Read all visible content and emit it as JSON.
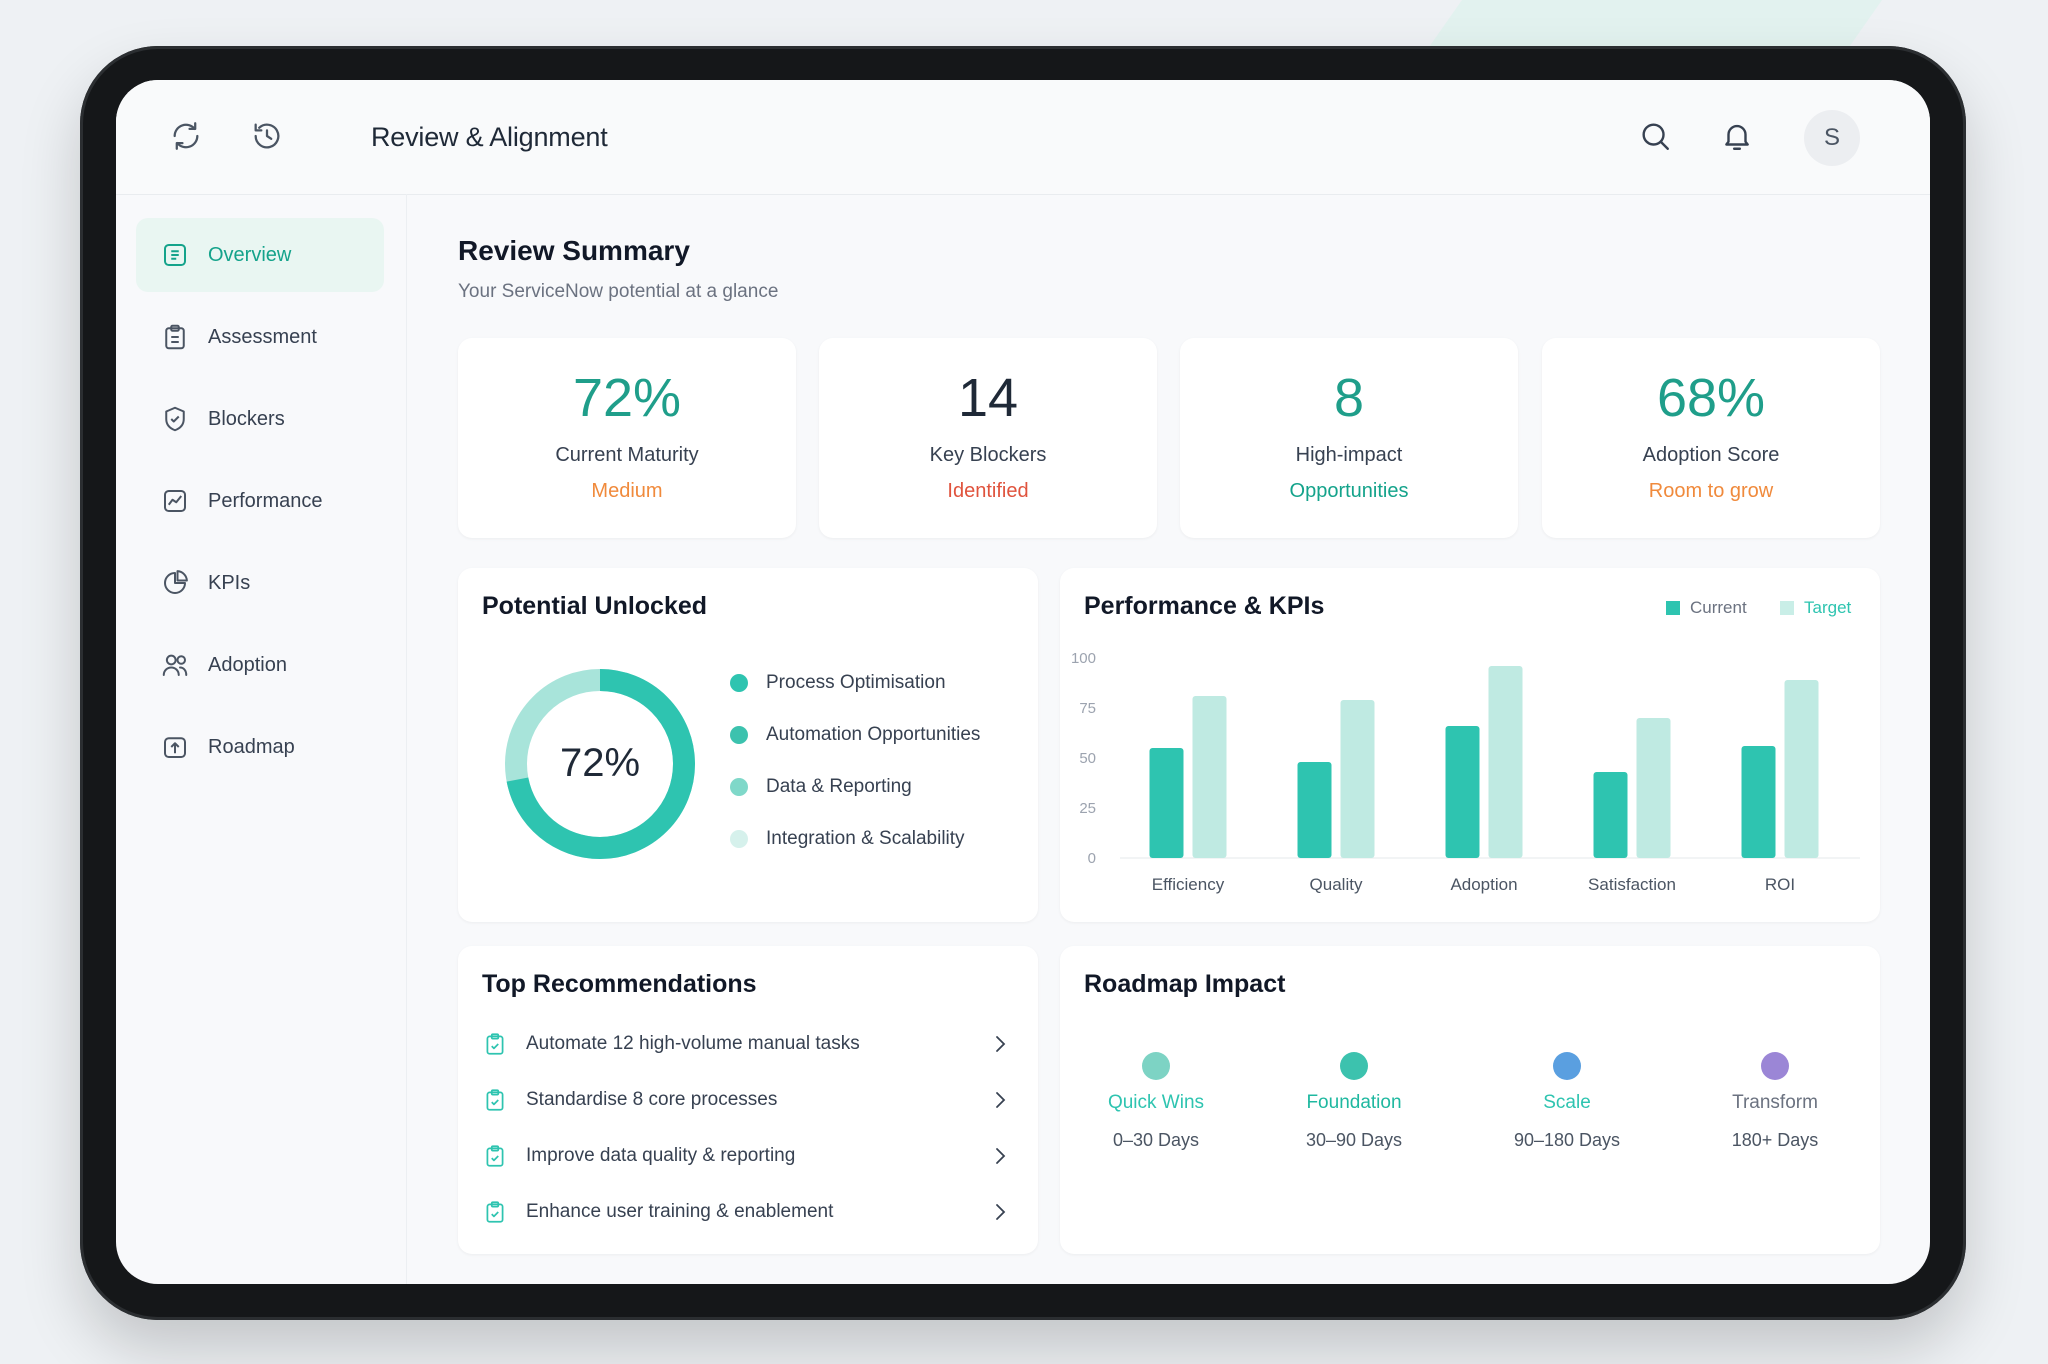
{
  "colors": {
    "accent": "#14a38b",
    "teal": "#2ec4b0",
    "teal_light": "#a8e4da",
    "orange": "#f08a3c",
    "red": "#e0533d",
    "blue": "#5a9fe0",
    "purple": "#9b86d6"
  },
  "header": {
    "title": "Review & Alignment",
    "icons": [
      "refresh-icon",
      "history-icon",
      "search-icon",
      "bell-icon"
    ],
    "avatar_initial": "S"
  },
  "sidebar": {
    "items": [
      {
        "label": "Overview",
        "icon": "overview-icon",
        "active": true
      },
      {
        "label": "Assessment",
        "icon": "clipboard-icon",
        "active": false
      },
      {
        "label": "Blockers",
        "icon": "shield-icon",
        "active": false
      },
      {
        "label": "Performance",
        "icon": "chart-line-icon",
        "active": false
      },
      {
        "label": "KPIs",
        "icon": "pie-icon",
        "active": false
      },
      {
        "label": "Adoption",
        "icon": "users-icon",
        "active": false
      },
      {
        "label": "Roadmap",
        "icon": "roadmap-icon",
        "active": false
      }
    ]
  },
  "summary": {
    "title": "Review Summary",
    "subtitle": "Your ServiceNow potential at a glance",
    "cards": [
      {
        "value": "72%",
        "label": "Current Maturity",
        "status": "Medium",
        "value_color": "#1f9e8a",
        "status_color": "#f08a3c"
      },
      {
        "value": "14",
        "label": "Key Blockers",
        "status": "Identified",
        "value_color": "#1f2937",
        "status_color": "#e0533d"
      },
      {
        "value": "8",
        "label": "High-impact",
        "status": "Opportunities",
        "value_color": "#1f9e8a",
        "status_color": "#14a38b"
      },
      {
        "value": "68%",
        "label": "Adoption Score",
        "status": "Room to grow",
        "value_color": "#1f9e8a",
        "status_color": "#f08a3c"
      }
    ]
  },
  "potential": {
    "title": "Potential Unlocked",
    "percent_label": "72%",
    "percent_value": 72,
    "legend": [
      {
        "label": "Process Optimisation",
        "color": "#2ec4b0"
      },
      {
        "label": "Automation Opportunities",
        "color": "#3cc2ae"
      },
      {
        "label": "Data & Reporting",
        "color": "#7fd8c9"
      },
      {
        "label": "Integration & Scalability",
        "color": "#d6f1ec"
      }
    ]
  },
  "performance": {
    "title": "Performance & KPIs",
    "legend_current": "Current",
    "legend_target": "Target"
  },
  "chart_data": {
    "type": "bar",
    "categories": [
      "Efficiency",
      "Quality",
      "Adoption",
      "Satisfaction",
      "ROI"
    ],
    "series": [
      {
        "name": "Current",
        "values": [
          55,
          48,
          66,
          43,
          56
        ]
      },
      {
        "name": "Target",
        "values": [
          81,
          79,
          96,
          70,
          89
        ]
      }
    ],
    "ylim": [
      0,
      100
    ],
    "yticks": [
      0,
      25,
      50,
      75,
      100
    ],
    "grid": false,
    "legend": "top-right"
  },
  "recommendations": {
    "title": "Top Recommendations",
    "items": [
      "Automate 12 high-volume manual tasks",
      "Standardise 8 core processes",
      "Improve data quality & reporting",
      "Enhance user training & enablement"
    ]
  },
  "roadmap": {
    "title": "Roadmap Impact",
    "phases": [
      {
        "name": "Quick Wins",
        "days": "0–30 Days",
        "color": "#7dd3c4",
        "name_color": "#2ec4b0"
      },
      {
        "name": "Foundation",
        "days": "30–90 Days",
        "color": "#3cc2ae",
        "name_color": "#1fb8a0"
      },
      {
        "name": "Scale",
        "days": "90–180 Days",
        "color": "#5a9fe0",
        "name_color": "#2ec4b0"
      },
      {
        "name": "Transform",
        "days": "180+ Days",
        "color": "#9b86d6",
        "name_color": "#6b7280"
      }
    ]
  }
}
